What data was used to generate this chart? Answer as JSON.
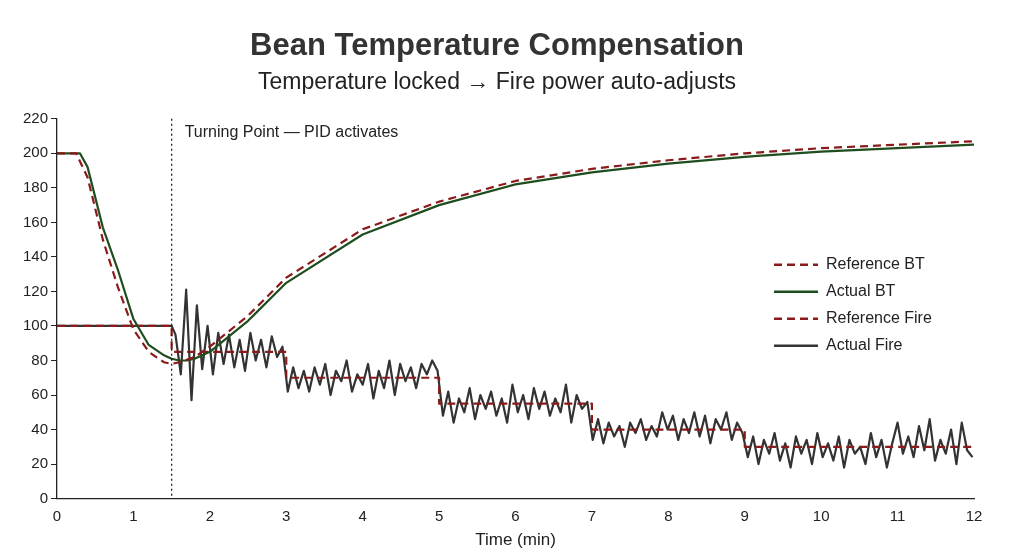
{
  "chart_data": {
    "type": "line",
    "title": "Bean Temperature Compensation",
    "subtitle": "Temperature locked → Fire power auto-adjusts",
    "xlabel": "Time (min)",
    "xlim": [
      0,
      12
    ],
    "xticks": [
      0,
      1,
      2,
      3,
      4,
      5,
      6,
      7,
      8,
      9,
      10,
      11,
      12
    ],
    "ylim": [
      0,
      220
    ],
    "yticks": [
      0,
      20,
      40,
      60,
      80,
      100,
      120,
      140,
      160,
      180,
      200,
      220
    ],
    "grid": false,
    "legend": "right",
    "marker": "none",
    "ref_lines": [
      {
        "axis": "x",
        "value": 1.5,
        "label": "Turning Point — PID activates",
        "color": "#222222",
        "line_style": "dotted"
      }
    ],
    "series": [
      {
        "name": "Reference BT",
        "color": "#8b1a1a",
        "line_style": "dashed",
        "x": [
          0,
          0.25,
          0.4,
          0.6,
          0.8,
          1.0,
          1.2,
          1.4,
          1.5,
          1.6,
          1.8,
          2,
          2.5,
          3,
          4,
          5,
          6,
          7,
          8,
          9,
          10,
          11,
          12
        ],
        "values": [
          200,
          200,
          186,
          150,
          122,
          98,
          85,
          79,
          78,
          79,
          82,
          88,
          106,
          128,
          156,
          172,
          184,
          191,
          196,
          200,
          203,
          205,
          207
        ]
      },
      {
        "name": "Actual BT",
        "color": "#1e4d1e",
        "line_style": "solid",
        "x": [
          0,
          0.3,
          0.4,
          0.6,
          0.8,
          1.0,
          1.2,
          1.4,
          1.5,
          1.6,
          1.7,
          1.8,
          2,
          2.5,
          3,
          4,
          5,
          6,
          7,
          8,
          9,
          10,
          11,
          12
        ],
        "values": [
          200,
          200,
          192,
          157,
          132,
          104,
          89,
          83,
          81,
          80,
          80,
          81,
          85,
          103,
          125,
          153,
          170,
          182,
          189,
          194,
          198,
          201,
          203,
          205
        ]
      },
      {
        "name": "Reference Fire",
        "type": "step",
        "color": "#8b1a1a",
        "line_style": "dashed",
        "x": [
          0,
          1.5,
          3,
          5,
          7,
          9,
          12
        ],
        "values": [
          100,
          85,
          70,
          55,
          40,
          30,
          30
        ]
      },
      {
        "name": "Actual Fire",
        "color": "#333333",
        "line_style": "solid",
        "x": [
          0,
          1.5,
          1.55,
          1.62,
          1.69,
          1.76,
          1.83,
          1.9,
          1.97,
          2.04,
          2.11,
          2.18,
          2.25,
          2.32,
          2.39,
          2.46,
          2.53,
          2.6,
          2.67,
          2.74,
          2.81,
          2.88,
          2.95,
          3.02,
          3.09,
          3.16,
          3.23,
          3.3,
          3.37,
          3.44,
          3.51,
          3.58,
          3.65,
          3.72,
          3.79,
          3.86,
          3.93,
          4,
          4.07,
          4.14,
          4.21,
          4.28,
          4.35,
          4.42,
          4.49,
          4.56,
          4.63,
          4.7,
          4.77,
          4.84,
          4.91,
          4.98,
          5.05,
          5.12,
          5.19,
          5.26,
          5.33,
          5.4,
          5.47,
          5.54,
          5.61,
          5.68,
          5.75,
          5.82,
          5.89,
          5.96,
          6.03,
          6.1,
          6.17,
          6.24,
          6.31,
          6.38,
          6.45,
          6.52,
          6.59,
          6.66,
          6.73,
          6.8,
          6.87,
          6.94,
          7.01,
          7.08,
          7.15,
          7.22,
          7.29,
          7.36,
          7.43,
          7.5,
          7.57,
          7.64,
          7.71,
          7.78,
          7.85,
          7.92,
          7.99,
          8.06,
          8.13,
          8.2,
          8.27,
          8.34,
          8.41,
          8.48,
          8.55,
          8.62,
          8.69,
          8.76,
          8.83,
          8.9,
          8.97,
          9.04,
          9.11,
          9.18,
          9.25,
          9.32,
          9.39,
          9.46,
          9.53,
          9.6,
          9.67,
          9.74,
          9.81,
          9.88,
          9.95,
          10.02,
          10.09,
          10.16,
          10.23,
          10.3,
          10.37,
          10.44,
          10.51,
          10.58,
          10.65,
          10.72,
          10.79,
          10.86,
          10.93,
          11,
          11.07,
          11.14,
          11.21,
          11.28,
          11.35,
          11.42,
          11.49,
          11.56,
          11.63,
          11.7,
          11.77,
          11.84,
          11.91,
          11.98
        ],
        "values": [
          100,
          100,
          95,
          72,
          121,
          57,
          112,
          75,
          100,
          72,
          96,
          78,
          95,
          76,
          92,
          74,
          96,
          80,
          92,
          76,
          94,
          82,
          88,
          62,
          76,
          64,
          74,
          62,
          76,
          66,
          78,
          60,
          74,
          68,
          80,
          62,
          72,
          66,
          78,
          58,
          74,
          64,
          80,
          60,
          78,
          68,
          76,
          64,
          78,
          72,
          80,
          74,
          48,
          62,
          44,
          58,
          50,
          64,
          46,
          60,
          52,
          62,
          48,
          58,
          44,
          66,
          50,
          60,
          46,
          64,
          52,
          62,
          48,
          58,
          50,
          66,
          44,
          60,
          52,
          56,
          34,
          46,
          32,
          44,
          36,
          42,
          30,
          44,
          38,
          46,
          34,
          42,
          36,
          50,
          40,
          48,
          34,
          46,
          38,
          50,
          36,
          48,
          32,
          46,
          40,
          50,
          34,
          44,
          38,
          24,
          36,
          20,
          34,
          26,
          38,
          22,
          32,
          18,
          36,
          26,
          34,
          20,
          38,
          24,
          32,
          22,
          36,
          18,
          34,
          26,
          30,
          20,
          38,
          24,
          34,
          18,
          32,
          44,
          26,
          36,
          24,
          42,
          28,
          46,
          22,
          34,
          26,
          40,
          20,
          44,
          28,
          24
        ]
      }
    ]
  }
}
